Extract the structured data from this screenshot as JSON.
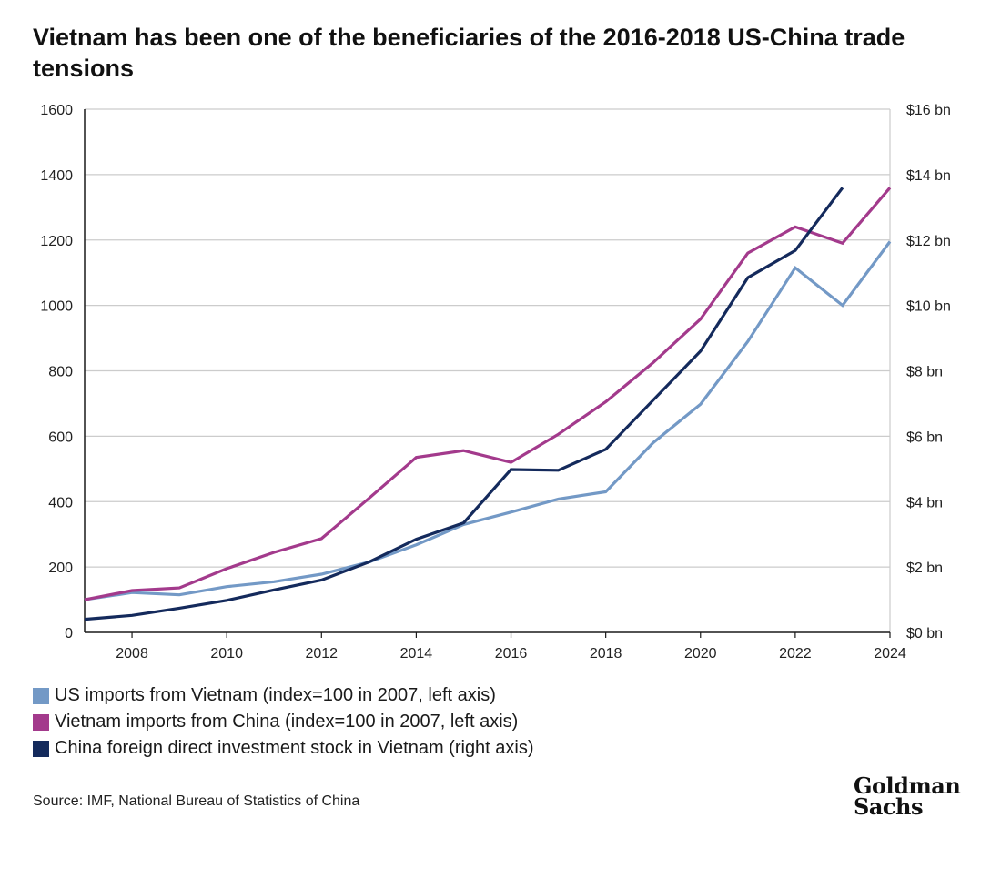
{
  "title": "Vietnam has been one of the beneficiaries of the 2016-2018 US-China trade tensions",
  "chart_data": {
    "type": "line",
    "x": [
      2007,
      2008,
      2009,
      2010,
      2011,
      2012,
      2013,
      2014,
      2015,
      2016,
      2017,
      2018,
      2019,
      2020,
      2021,
      2022,
      2023,
      2024
    ],
    "xlim": [
      2007,
      2024
    ],
    "x_ticks": [
      "2008",
      "2010",
      "2012",
      "2014",
      "2016",
      "2018",
      "2020",
      "2022",
      "2024"
    ],
    "left_axis": {
      "ylim": [
        0,
        1600
      ],
      "ticks": [
        "0",
        "200",
        "400",
        "600",
        "800",
        "1000",
        "1200",
        "1400",
        "1600"
      ]
    },
    "right_axis": {
      "ylim": [
        0,
        16
      ],
      "unit": "bn USD",
      "ticks": [
        "$0 bn",
        "$2 bn",
        "$4 bn",
        "$6 bn",
        "$8 bn",
        "$10 bn",
        "$12 bn",
        "$14 bn",
        "$16 bn"
      ]
    },
    "grid": true,
    "series": [
      {
        "name": "US imports from Vietnam (index=100 in 2007, left axis)",
        "axis": "left",
        "color": "#7399c6",
        "values": [
          100,
          122,
          115,
          140,
          155,
          178,
          215,
          268,
          330,
          368,
          408,
          430,
          580,
          698,
          890,
          1115,
          1000,
          1195
        ]
      },
      {
        "name": "Vietnam imports from China (index=100 in 2007, left axis)",
        "axis": "left",
        "color": "#a33a8c",
        "values": [
          100,
          128,
          136,
          195,
          245,
          287,
          410,
          535,
          556,
          520,
          606,
          705,
          825,
          958,
          1160,
          1240,
          1190,
          1360
        ]
      },
      {
        "name": "China foreign direct investment stock in Vietnam (right axis)",
        "axis": "right",
        "color": "#142a5c",
        "values": [
          0.4,
          0.52,
          0.74,
          0.98,
          1.3,
          1.6,
          2.15,
          2.85,
          3.35,
          4.98,
          4.96,
          5.6,
          7.1,
          8.6,
          10.85,
          11.68,
          13.6,
          null
        ]
      }
    ]
  },
  "legend": [
    {
      "label": "US imports from Vietnam (index=100 in 2007, left axis)",
      "color": "#7399c6"
    },
    {
      "label": "Vietnam imports from China (index=100 in 2007, left axis)",
      "color": "#a33a8c"
    },
    {
      "label": "China foreign direct investment stock in Vietnam (right axis)",
      "color": "#142a5c"
    }
  ],
  "source": "Source: IMF, National Bureau of Statistics of China",
  "logo": {
    "line1": "Goldman",
    "line2": "Sachs"
  }
}
